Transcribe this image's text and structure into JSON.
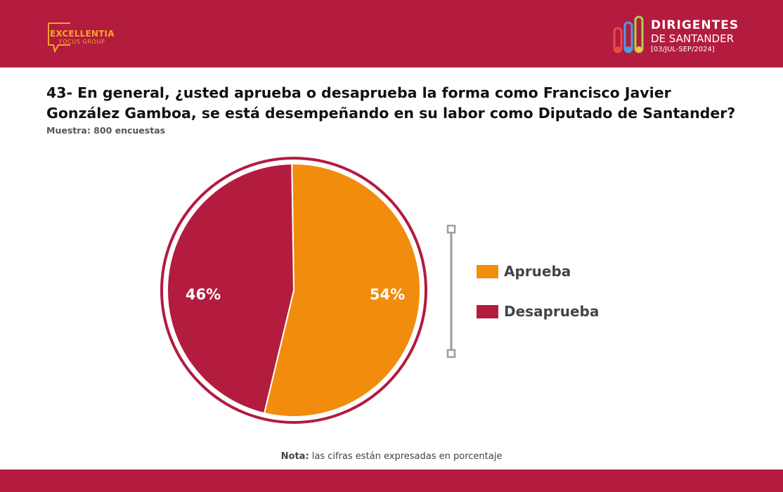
{
  "colors": {
    "brand": "#B31B3F",
    "approve": "#F28C0C",
    "disapprove": "#B31B3F",
    "logo_text": "#F5A623",
    "axis_deco": "#9E9E9E"
  },
  "header": {
    "left_logo": {
      "line1": "EXCELLENTIA",
      "line2": "FOCUS GROUP"
    },
    "right_logo": {
      "title": "DIRIGENTES",
      "subtitle": "DE SANTANDER",
      "date": "[03/JUL-SEP/2024]"
    }
  },
  "question": "43- En general, ¿usted aprueba o desaprueba la forma como Francisco Javier González Gamboa, se está desempeñando en su labor como Diputado de Santander?",
  "sample": "Muestra: 800 encuestas",
  "note": {
    "label": "Nota:",
    "text": " las cifras están expresadas en porcentaje"
  },
  "chart_data": {
    "type": "pie",
    "title": "",
    "labels": [
      "Aprueba",
      "Desaprueba"
    ],
    "values": [
      54,
      46
    ],
    "data_labels": [
      "54%",
      "46%"
    ],
    "colors": [
      "#F28C0C",
      "#B31B3F"
    ],
    "legend": {
      "placement": "right",
      "entries": [
        "Aprueba",
        "Desaprueba"
      ]
    },
    "start_angle_deg": 0,
    "direction": "clockwise"
  }
}
